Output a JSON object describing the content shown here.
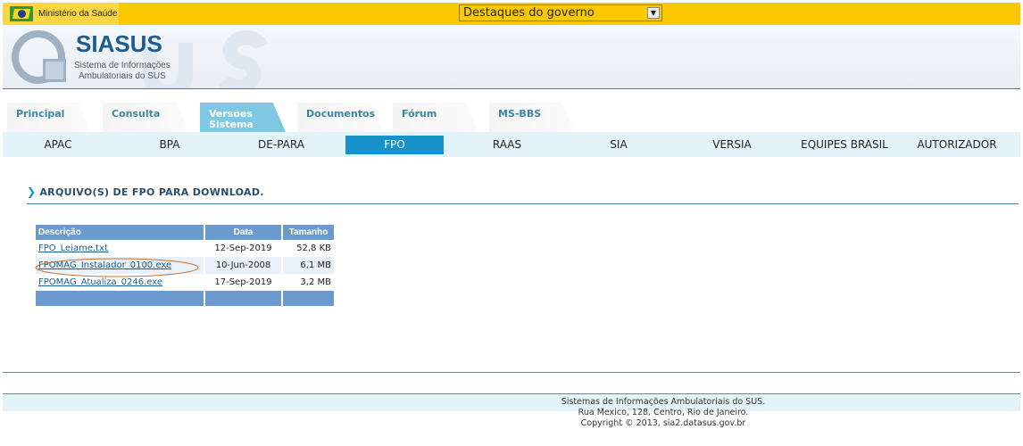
{
  "topbar": {
    "ministry": "Ministério da Saúde",
    "select_value": "Destaques do governo"
  },
  "header": {
    "brand": "SIASUS",
    "subtitle_line1": "Sistema de Informações",
    "subtitle_line2": "Ambulatoriais do SUS"
  },
  "tabs": [
    {
      "label": "Principal"
    },
    {
      "label": "Consulta"
    },
    {
      "label": "Versões Sistema",
      "active": true
    },
    {
      "label": "Documentos"
    },
    {
      "label": "Fórum"
    },
    {
      "label": "MS-BBS"
    }
  ],
  "subnav": [
    {
      "label": "APAC"
    },
    {
      "label": "BPA"
    },
    {
      "label": "DE-PARA"
    },
    {
      "label": "FPO",
      "active": true
    },
    {
      "label": "RAAS"
    },
    {
      "label": "SIA"
    },
    {
      "label": "VERSIA"
    },
    {
      "label": "EQUIPES BRASIL"
    },
    {
      "label": "AUTORIZADOR"
    }
  ],
  "main": {
    "title": "ARQUIVO(S) DE FPO PARA DOWNLOAD.",
    "table": {
      "headers": [
        "Descrição",
        "Data",
        "Tamanho"
      ],
      "rows": [
        [
          "FPO_Leiame.txt",
          "12-Sep-2019",
          "52,8 KB"
        ],
        [
          "FPOMAG_Instalador_0100.exe",
          "10-Jun-2008",
          "6,1 MB"
        ],
        [
          "FPOMAG_Atualiza_0246.exe",
          "17-Sep-2019",
          "3,2 MB"
        ]
      ]
    }
  },
  "footer": {
    "line1": "Sistemas de Informações Ambulatoriais do SUS.",
    "line2": "Rua Mexico, 128, Centro, Rio de Janeiro.",
    "line3": "Copyright © 2013, sia2.datasus.gov.br"
  },
  "colors": {
    "topbar": "#fcc800",
    "accent": "#1691c9",
    "table_header": "#6b9bce",
    "annotation_ellipse": "#c8702a"
  }
}
